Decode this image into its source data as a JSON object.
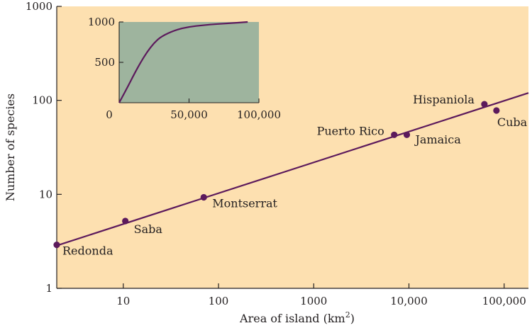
{
  "chart_data": [
    {
      "type": "scatter",
      "xlabel": "Area of island (km",
      "xlabel_sup": "2",
      "xlabel_close": ")",
      "ylabel": "Number of species",
      "x_scale": "log",
      "y_scale": "log",
      "xlim": [
        2,
        180000
      ],
      "ylim": [
        1,
        1000
      ],
      "x_ticks": [
        10,
        100,
        1000,
        10000,
        100000
      ],
      "x_tick_labels": [
        "10",
        "100",
        "1000",
        "10,000",
        "100,000"
      ],
      "y_ticks": [
        1,
        10,
        100,
        1000
      ],
      "y_tick_labels": [
        "1",
        "10",
        "100",
        "1000"
      ],
      "grid": false,
      "background_color": "#fde0b0",
      "point_color": "#5c1a5c",
      "line_color": "#5c1a5c",
      "points": [
        {
          "name": "Redonda",
          "x": 2,
          "y": 2.9
        },
        {
          "name": "Saba",
          "x": 10.5,
          "y": 5.2
        },
        {
          "name": "Montserrat",
          "x": 70,
          "y": 9.3
        },
        {
          "name": "Puerto Rico",
          "x": 7000,
          "y": 43
        },
        {
          "name": "Jamaica",
          "x": 9500,
          "y": 43
        },
        {
          "name": "Hispaniola",
          "x": 62000,
          "y": 91
        },
        {
          "name": "Cuba",
          "x": 83000,
          "y": 78
        }
      ],
      "fit_line": {
        "x": [
          2,
          180000
        ],
        "y": [
          2.85,
          120
        ]
      }
    },
    {
      "type": "line",
      "inset": true,
      "x_scale": "linear",
      "y_scale": "linear",
      "xlim": [
        0,
        100000
      ],
      "ylim": [
        0,
        1000
      ],
      "x_ticks": [
        0,
        50000,
        100000
      ],
      "x_tick_labels": [
        "0",
        "50,000",
        "100,000"
      ],
      "y_ticks": [
        500,
        1000
      ],
      "y_tick_labels": [
        "500",
        "1000"
      ],
      "background_color": "#9eb49e",
      "line_color": "#5c1a5c",
      "curve": {
        "x": [
          0,
          5000,
          10000,
          15000,
          20000,
          25000,
          30000,
          40000,
          50000,
          60000,
          70000,
          80000,
          92000
        ],
        "y": [
          0,
          160,
          330,
          490,
          630,
          740,
          820,
          900,
          940,
          960,
          975,
          985,
          1000
        ]
      }
    }
  ]
}
